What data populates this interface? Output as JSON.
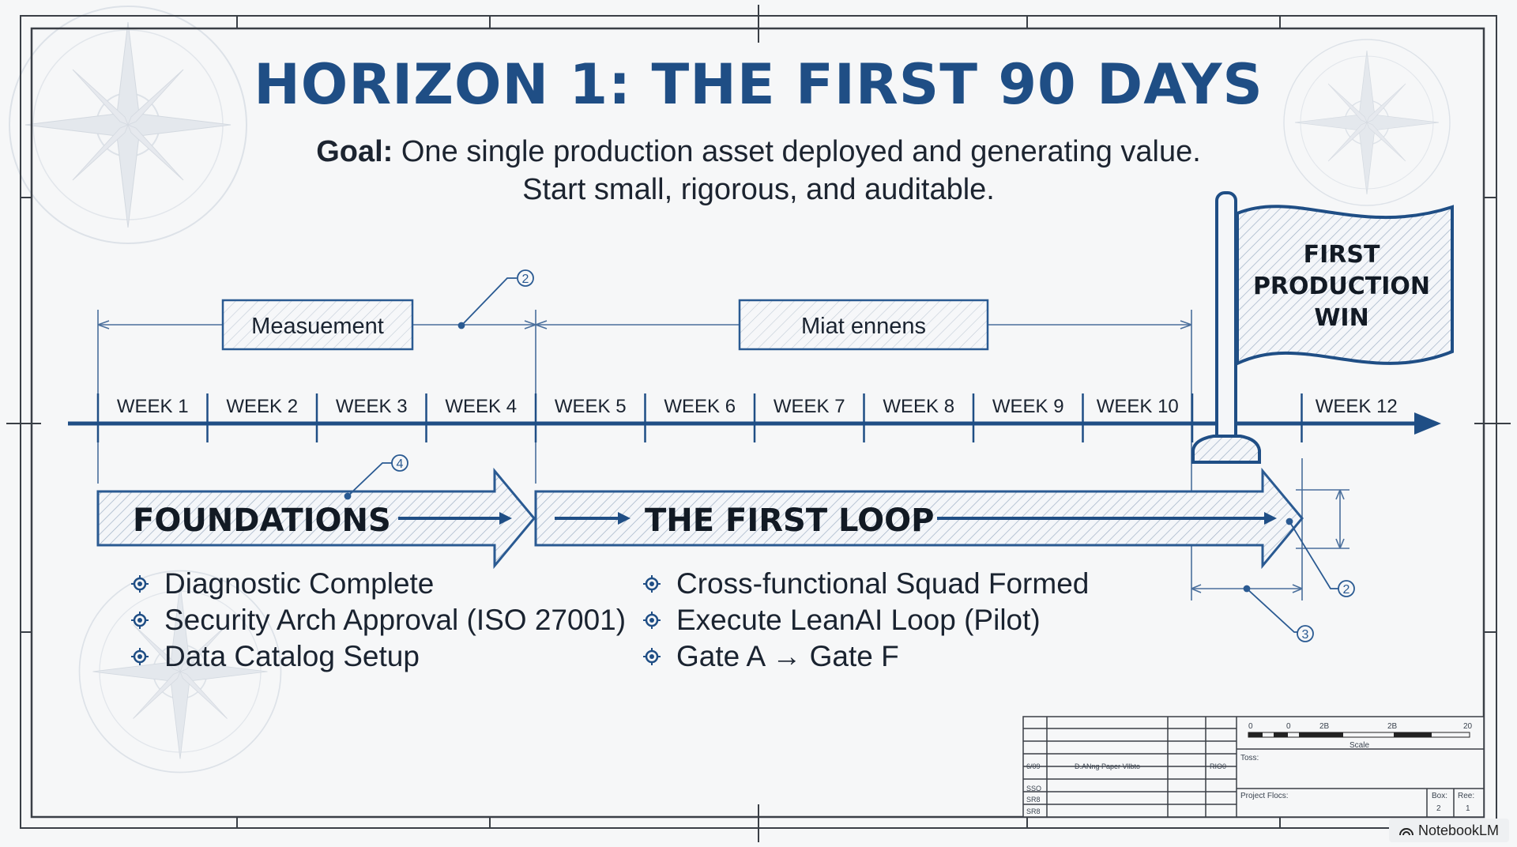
{
  "title": "HORIZON 1: THE FIRST 90 DAYS",
  "goal": {
    "label": "Goal:",
    "line1": "One single production asset deployed and generating value.",
    "line2": "Start small, rigorous, and auditable."
  },
  "timeline": {
    "weeks": [
      "WEEK 1",
      "WEEK 2",
      "WEEK 3",
      "WEEK 4",
      "WEEK 5",
      "WEEK 6",
      "WEEK 7",
      "WEEK 8",
      "WEEK 9",
      "WEEK 10",
      "WEEK 12"
    ],
    "phase_labels": [
      "Measuement",
      "Miat ennens"
    ]
  },
  "flag": {
    "line1": "FIRST",
    "line2": "PRODUCTION",
    "line3": "WIN"
  },
  "phases": [
    {
      "name": "FOUNDATIONS",
      "items": [
        "Diagnostic Complete",
        "Security Arch Approval (ISO 27001)",
        "Data Catalog Setup"
      ]
    },
    {
      "name": "THE FIRST LOOP",
      "items": [
        "Cross-functional Squad Formed",
        "Execute LeanAI Loop (Pilot)",
        "Gate A → Gate F"
      ]
    }
  ],
  "callouts": [
    "2",
    "4",
    "2",
    "3"
  ],
  "title_block": {
    "scale_ticks": [
      "0",
      "0",
      "2B",
      "2B",
      "20"
    ],
    "scale_label": "Scale",
    "row1": "6/09",
    "drawing_label": "D.ANng Paper Vllbto",
    "rev_code": "RIO0",
    "row2": "SSO",
    "row3": "SR8",
    "row4": "SR8",
    "toss": "Toss:",
    "project_flocs": "Project Flocs:",
    "box1_label": "Box:",
    "box1_value": "2",
    "box2_label": "Ree:",
    "box2_value": "1"
  },
  "brand": "NotebookLM",
  "colors": {
    "primary": "#1f4e85",
    "line": "#2a5a92",
    "text": "#1a2330"
  }
}
